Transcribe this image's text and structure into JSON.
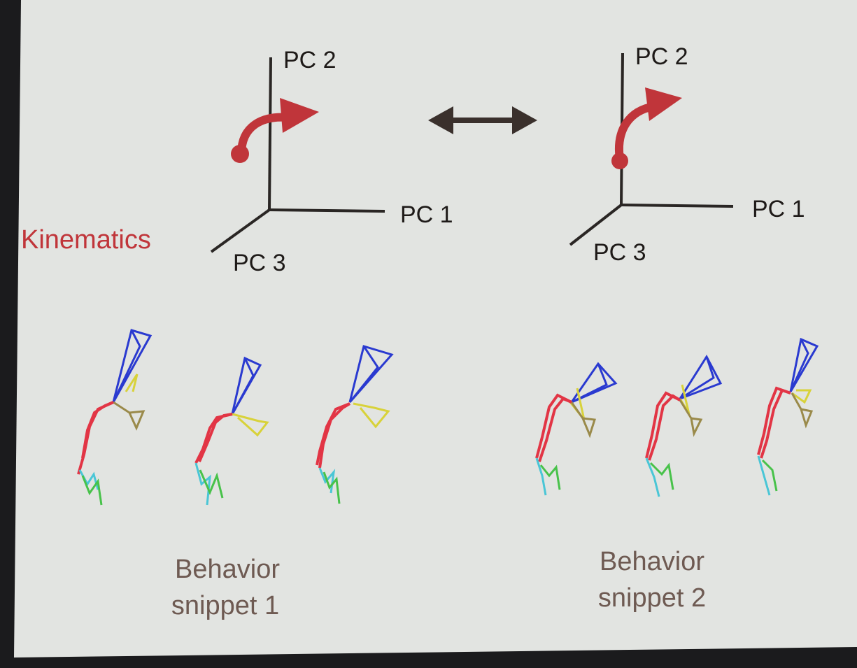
{
  "colors": {
    "slide_bg": "#e2e4e1",
    "axis": "#2a2624",
    "trajectory": "#c0353a",
    "double_arrow": "#3a302c",
    "kinematics_label": "#c0353a",
    "caption": "#6e5a52",
    "skeleton_head": "#2a3ad0",
    "skeleton_body": "#e23545",
    "skeleton_arm": "#d8d23a",
    "skeleton_arm_back": "#9a8a4a",
    "skeleton_leg_a": "#4ac6d6",
    "skeleton_leg_b": "#48c24a",
    "skeleton_pink": "#d04a78"
  },
  "kinematics_label": "Kinematics",
  "pc_plot_1": {
    "axis_y": "PC 2",
    "axis_x": "PC 1",
    "axis_z": "PC 3"
  },
  "pc_plot_2": {
    "axis_y": "PC 2",
    "axis_x": "PC 1",
    "axis_z": "PC 3"
  },
  "snippet_1": {
    "caption_line1": "Behavior",
    "caption_line2": "snippet 1"
  },
  "snippet_2": {
    "caption_line1": "Behavior",
    "caption_line2": "snippet 2"
  }
}
